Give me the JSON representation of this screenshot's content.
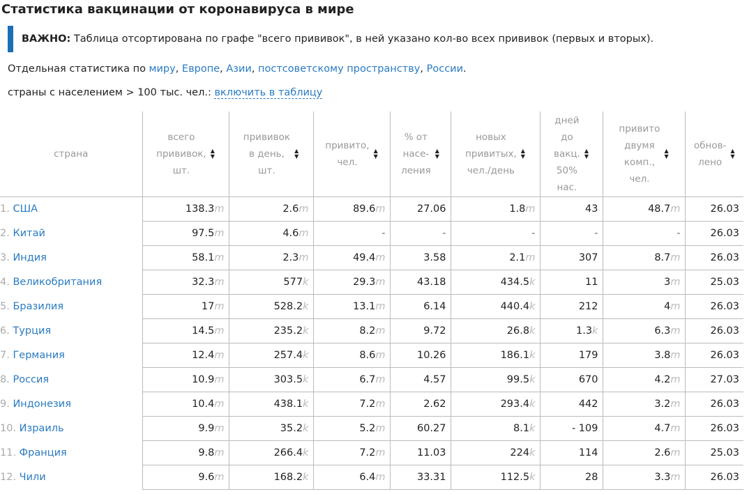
{
  "title": "Статистика вакцинации от коронавируса в мире",
  "notice": {
    "label": "ВАЖНО:",
    "text": " Таблица отсортирована по графе \"всего прививок\", в ней указано кол-во всех прививок (первых и вторых)."
  },
  "links": {
    "prefix": "Отдельная статистика по ",
    "items": [
      "миру",
      "Европе",
      "Азии",
      "постсоветскому пространству",
      "России"
    ],
    "separator": ", ",
    "suffix": "."
  },
  "filter": {
    "text": "страны с населением > 100 тыс. чел.: ",
    "link": "включить в таблицу"
  },
  "columns": [
    {
      "label": "страна",
      "lines": [
        "страна"
      ]
    },
    {
      "label": "всего прививок, шт.",
      "lines": [
        "всего",
        "прививок,",
        "шт."
      ]
    },
    {
      "label": "прививок в день, шт.",
      "lines": [
        "прививок",
        "в день,",
        "шт."
      ]
    },
    {
      "label": "привито, чел.",
      "lines": [
        "привито,",
        "чел."
      ]
    },
    {
      "label": "% от населения",
      "lines": [
        "% от",
        "насе-",
        "ления"
      ]
    },
    {
      "label": "новых привитых, чел./день",
      "lines": [
        "новых",
        "привитых,",
        "чел./день"
      ]
    },
    {
      "label": "дней до вакц. 50% нас.",
      "lines": [
        "дней",
        "до",
        "вакц.",
        "50%",
        "нас."
      ]
    },
    {
      "label": "привито двумя комп., чел.",
      "lines": [
        "привито",
        "двумя",
        "комп.,",
        "чел."
      ]
    },
    {
      "label": "обновлено",
      "lines": [
        "обнов-",
        "лено"
      ]
    }
  ],
  "sort_icon": "sort-arrows-icon",
  "rows": [
    {
      "rank": "1.",
      "country": "США",
      "total": [
        "138.3",
        "m"
      ],
      "per_day": [
        "2.6",
        "m"
      ],
      "vaccinated": [
        "89.6",
        "m"
      ],
      "percent": "27.06",
      "new_per_day": [
        "1.8",
        "m"
      ],
      "days_to_50": [
        "43",
        ""
      ],
      "fully": [
        "48.7",
        "m"
      ],
      "updated": "26.03"
    },
    {
      "rank": "2.",
      "country": "Китай",
      "total": [
        "97.5",
        "m"
      ],
      "per_day": [
        "4.6",
        "m"
      ],
      "vaccinated": [
        "-",
        ""
      ],
      "percent": "-",
      "new_per_day": [
        "-",
        ""
      ],
      "days_to_50": [
        "-",
        ""
      ],
      "fully": [
        "-",
        ""
      ],
      "updated": "26.03"
    },
    {
      "rank": "3.",
      "country": "Индия",
      "total": [
        "58.1",
        "m"
      ],
      "per_day": [
        "2.3",
        "m"
      ],
      "vaccinated": [
        "49.4",
        "m"
      ],
      "percent": "3.58",
      "new_per_day": [
        "2.1",
        "m"
      ],
      "days_to_50": [
        "307",
        ""
      ],
      "fully": [
        "8.7",
        "m"
      ],
      "updated": "26.03"
    },
    {
      "rank": "4.",
      "country": "Великобритания",
      "total": [
        "32.3",
        "m"
      ],
      "per_day": [
        "577",
        "k"
      ],
      "vaccinated": [
        "29.3",
        "m"
      ],
      "percent": "43.18",
      "new_per_day": [
        "434.5",
        "k"
      ],
      "days_to_50": [
        "11",
        ""
      ],
      "fully": [
        "3",
        "m"
      ],
      "updated": "25.03"
    },
    {
      "rank": "5.",
      "country": "Бразилия",
      "total": [
        "17",
        "m"
      ],
      "per_day": [
        "528.2",
        "k"
      ],
      "vaccinated": [
        "13.1",
        "m"
      ],
      "percent": "6.14",
      "new_per_day": [
        "440.4",
        "k"
      ],
      "days_to_50": [
        "212",
        ""
      ],
      "fully": [
        "4",
        "m"
      ],
      "updated": "26.03"
    },
    {
      "rank": "6.",
      "country": "Турция",
      "total": [
        "14.5",
        "m"
      ],
      "per_day": [
        "235.2",
        "k"
      ],
      "vaccinated": [
        "8.2",
        "m"
      ],
      "percent": "9.72",
      "new_per_day": [
        "26.8",
        "k"
      ],
      "days_to_50": [
        "1.3",
        "k"
      ],
      "fully": [
        "6.3",
        "m"
      ],
      "updated": "26.03"
    },
    {
      "rank": "7.",
      "country": "Германия",
      "total": [
        "12.4",
        "m"
      ],
      "per_day": [
        "257.4",
        "k"
      ],
      "vaccinated": [
        "8.6",
        "m"
      ],
      "percent": "10.26",
      "new_per_day": [
        "186.1",
        "k"
      ],
      "days_to_50": [
        "179",
        ""
      ],
      "fully": [
        "3.8",
        "m"
      ],
      "updated": "26.03"
    },
    {
      "rank": "8.",
      "country": "Россия",
      "total": [
        "10.9",
        "m"
      ],
      "per_day": [
        "303.5",
        "k"
      ],
      "vaccinated": [
        "6.7",
        "m"
      ],
      "percent": "4.57",
      "new_per_day": [
        "99.5",
        "k"
      ],
      "days_to_50": [
        "670",
        ""
      ],
      "fully": [
        "4.2",
        "m"
      ],
      "updated": "27.03"
    },
    {
      "rank": "9.",
      "country": "Индонезия",
      "total": [
        "10.4",
        "m"
      ],
      "per_day": [
        "438.1",
        "k"
      ],
      "vaccinated": [
        "7.2",
        "m"
      ],
      "percent": "2.62",
      "new_per_day": [
        "293.4",
        "k"
      ],
      "days_to_50": [
        "442",
        ""
      ],
      "fully": [
        "3.2",
        "m"
      ],
      "updated": "26.03"
    },
    {
      "rank": "10.",
      "country": "Израиль",
      "total": [
        "9.9",
        "m"
      ],
      "per_day": [
        "35.2",
        "k"
      ],
      "vaccinated": [
        "5.2",
        "m"
      ],
      "percent": "60.27",
      "new_per_day": [
        "8.1",
        "k"
      ],
      "days_to_50": [
        "- 109",
        ""
      ],
      "fully": [
        "4.7",
        "m"
      ],
      "updated": "26.03"
    },
    {
      "rank": "11.",
      "country": "Франция",
      "total": [
        "9.8",
        "m"
      ],
      "per_day": [
        "266.4",
        "k"
      ],
      "vaccinated": [
        "7.2",
        "m"
      ],
      "percent": "11.03",
      "new_per_day": [
        "224",
        "k"
      ],
      "days_to_50": [
        "114",
        ""
      ],
      "fully": [
        "2.6",
        "m"
      ],
      "updated": "25.03"
    },
    {
      "rank": "12.",
      "country": "Чили",
      "total": [
        "9.6",
        "m"
      ],
      "per_day": [
        "168.2",
        "k"
      ],
      "vaccinated": [
        "6.4",
        "m"
      ],
      "percent": "33.31",
      "new_per_day": [
        "112.5",
        "k"
      ],
      "days_to_50": [
        "28",
        ""
      ],
      "fully": [
        "3.3",
        "m"
      ],
      "updated": "26.03"
    }
  ],
  "colors": {
    "accent": "#1a6fb5",
    "link": "#2a7bc1",
    "muted": "#999999",
    "unit": "#bbbbbb"
  }
}
